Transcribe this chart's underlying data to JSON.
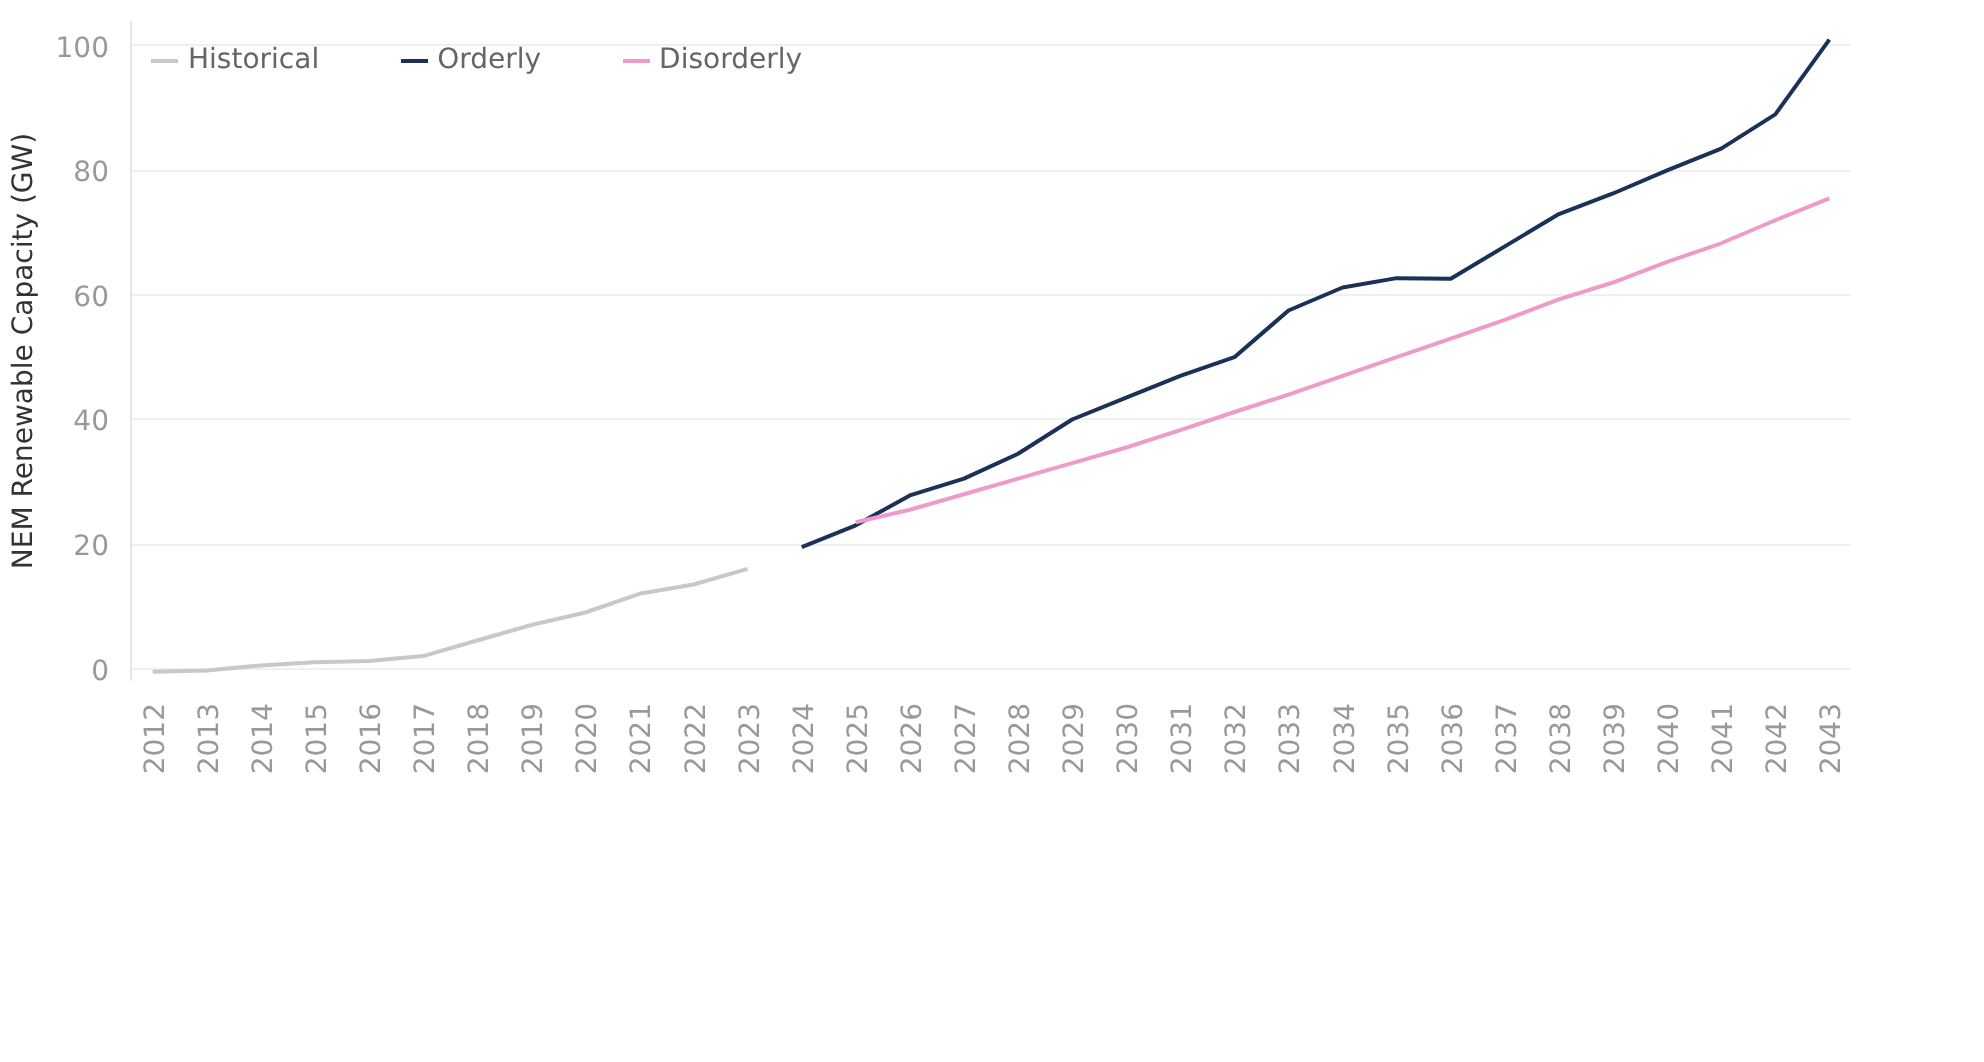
{
  "chart_data": {
    "type": "line",
    "ylabel": "NEM Renewable Capacity (GW)",
    "categories": [
      "2012",
      "2013",
      "2014",
      "2015",
      "2016",
      "2017",
      "2018",
      "2019",
      "2020",
      "2021",
      "2022",
      "2023",
      "2024",
      "2025",
      "2026",
      "2027",
      "2028",
      "2029",
      "2030",
      "2031",
      "2032",
      "2033",
      "2034",
      "2035",
      "2036",
      "2037",
      "2038",
      "2039",
      "2040",
      "2041",
      "2042",
      "2043"
    ],
    "series": [
      {
        "name": "Historical",
        "color": "#c8c8c8",
        "values": [
          -0.5,
          -0.3,
          0.5,
          1,
          1.2,
          2,
          4.5,
          7,
          9,
          12,
          13.5,
          16,
          null,
          null,
          null,
          null,
          null,
          null,
          null,
          null,
          null,
          null,
          null,
          null,
          null,
          null,
          null,
          null,
          null,
          null,
          null,
          null
        ]
      },
      {
        "name": "Orderly",
        "color": "#1b3158",
        "values": [
          null,
          null,
          null,
          null,
          null,
          null,
          null,
          null,
          null,
          null,
          null,
          null,
          19.5,
          23,
          27.8,
          30.5,
          34.5,
          40,
          43.5,
          47,
          50,
          57.5,
          61.2,
          62.7,
          62.6,
          67.8,
          73,
          76.3,
          80,
          83.5,
          89,
          101
        ]
      },
      {
        "name": "Disorderly",
        "color": "#ee9acb",
        "values": [
          null,
          null,
          null,
          null,
          null,
          null,
          null,
          null,
          null,
          null,
          null,
          null,
          null,
          23.5,
          25.5,
          28,
          30.5,
          33,
          35.5,
          38.3,
          41.2,
          44,
          47,
          50,
          53,
          56,
          59.3,
          62,
          65.3,
          68.3,
          72,
          75.5
        ]
      }
    ],
    "ylim": [
      -2,
      104
    ],
    "yticks": [
      0,
      20,
      40,
      60,
      80,
      100
    ],
    "grid": "y",
    "legend": "top left",
    "line_style": "solid"
  }
}
